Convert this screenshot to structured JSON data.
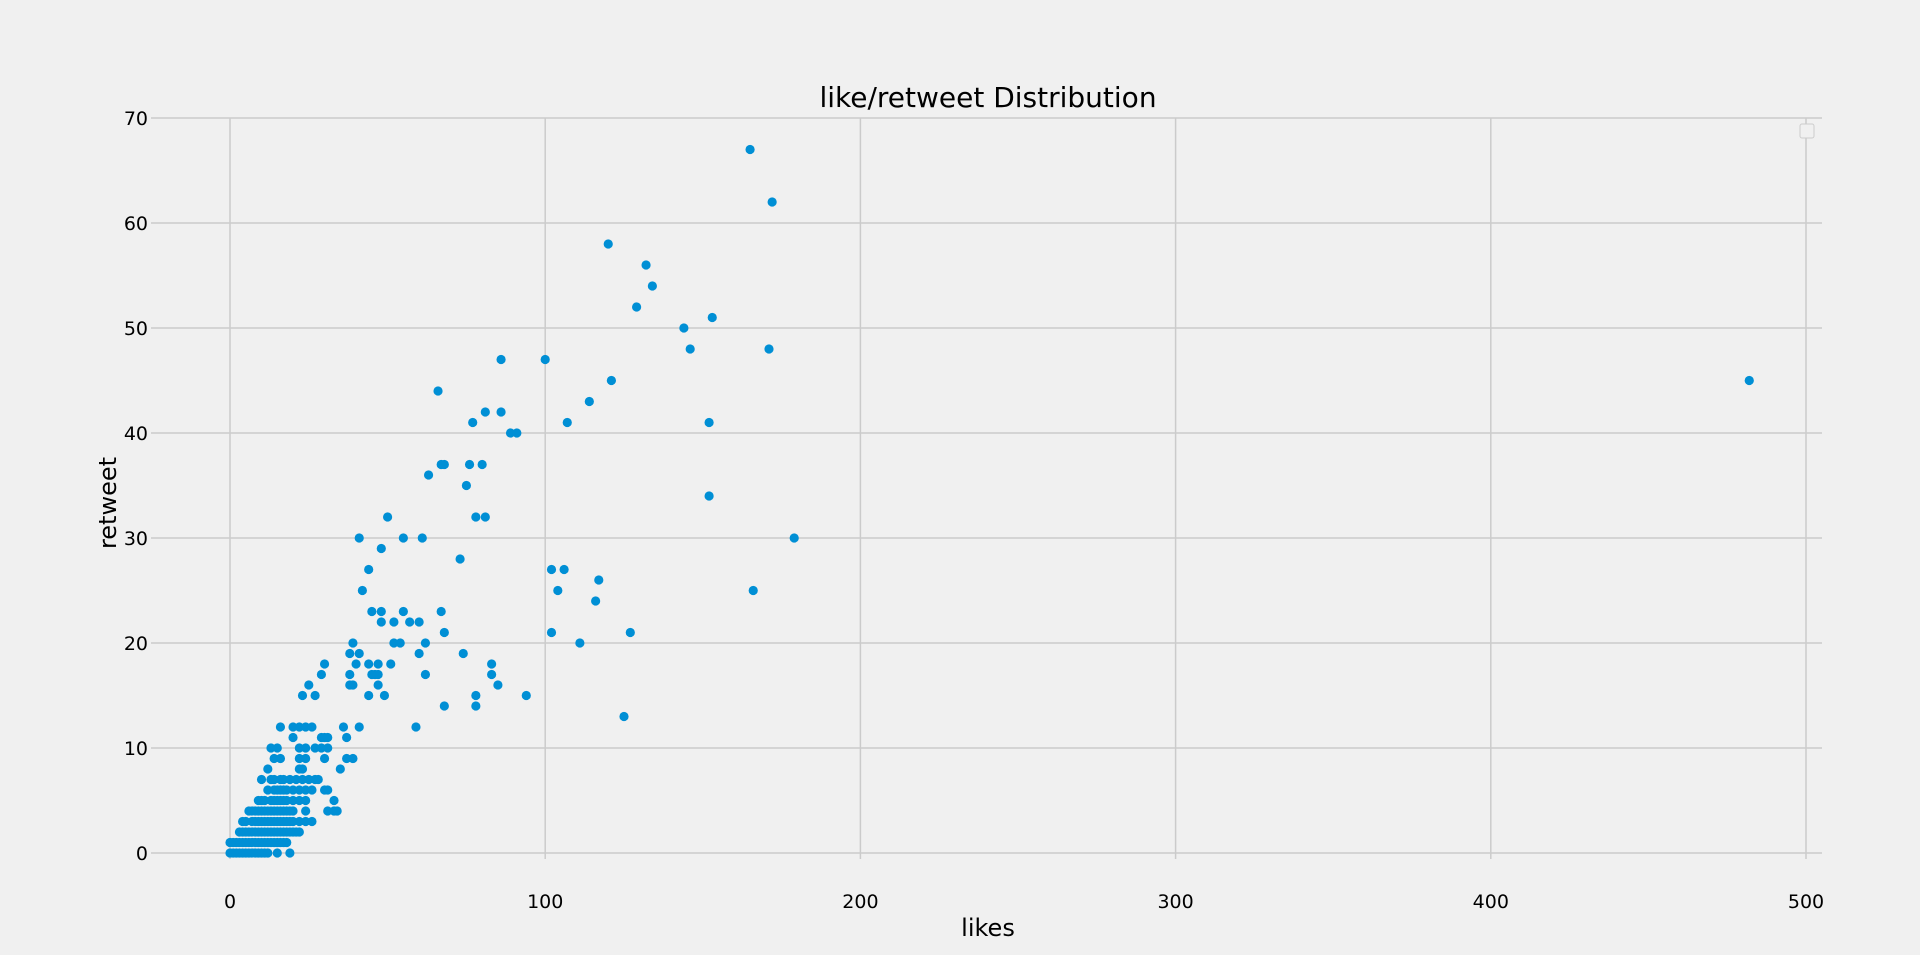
{
  "chart_data": {
    "type": "scatter",
    "title": "like/retweet Distribution",
    "xlabel": "likes",
    "ylabel": "retweet",
    "xlim": [
      -24,
      506
    ],
    "ylim": [
      -4,
      70
    ],
    "xticks": [
      0,
      100,
      200,
      300,
      400,
      500
    ],
    "yticks": [
      0,
      10,
      20,
      30,
      40,
      50,
      60,
      70
    ],
    "grid": true,
    "legend": "top-right (empty)",
    "marker_color": "#008fd5",
    "series": [
      {
        "points": [
          [
            0,
            0
          ],
          [
            1,
            0
          ],
          [
            2,
            0
          ],
          [
            3,
            0
          ],
          [
            4,
            0
          ],
          [
            5,
            0
          ],
          [
            6,
            0
          ],
          [
            7,
            0
          ],
          [
            8,
            0
          ],
          [
            9,
            0
          ],
          [
            10,
            0
          ],
          [
            11,
            0
          ],
          [
            12,
            0
          ],
          [
            15,
            0
          ],
          [
            19,
            0
          ],
          [
            0,
            1
          ],
          [
            1,
            1
          ],
          [
            2,
            1
          ],
          [
            3,
            1
          ],
          [
            4,
            1
          ],
          [
            5,
            1
          ],
          [
            6,
            1
          ],
          [
            7,
            1
          ],
          [
            8,
            1
          ],
          [
            9,
            1
          ],
          [
            10,
            1
          ],
          [
            11,
            1
          ],
          [
            12,
            1
          ],
          [
            13,
            1
          ],
          [
            14,
            1
          ],
          [
            15,
            1
          ],
          [
            16,
            1
          ],
          [
            17,
            1
          ],
          [
            18,
            1
          ],
          [
            3,
            2
          ],
          [
            4,
            2
          ],
          [
            5,
            2
          ],
          [
            6,
            2
          ],
          [
            7,
            2
          ],
          [
            8,
            2
          ],
          [
            9,
            2
          ],
          [
            10,
            2
          ],
          [
            11,
            2
          ],
          [
            12,
            2
          ],
          [
            13,
            2
          ],
          [
            14,
            2
          ],
          [
            15,
            2
          ],
          [
            16,
            2
          ],
          [
            17,
            2
          ],
          [
            18,
            2
          ],
          [
            19,
            2
          ],
          [
            20,
            2
          ],
          [
            21,
            2
          ],
          [
            22,
            2
          ],
          [
            4,
            3
          ],
          [
            5,
            3
          ],
          [
            7,
            3
          ],
          [
            8,
            3
          ],
          [
            9,
            3
          ],
          [
            10,
            3
          ],
          [
            11,
            3
          ],
          [
            12,
            3
          ],
          [
            13,
            3
          ],
          [
            14,
            3
          ],
          [
            15,
            3
          ],
          [
            16,
            3
          ],
          [
            17,
            3
          ],
          [
            18,
            3
          ],
          [
            19,
            3
          ],
          [
            20,
            3
          ],
          [
            22,
            3
          ],
          [
            24,
            3
          ],
          [
            26,
            3
          ],
          [
            6,
            4
          ],
          [
            7,
            4
          ],
          [
            8,
            4
          ],
          [
            9,
            4
          ],
          [
            10,
            4
          ],
          [
            11,
            4
          ],
          [
            12,
            4
          ],
          [
            13,
            4
          ],
          [
            14,
            4
          ],
          [
            15,
            4
          ],
          [
            16,
            4
          ],
          [
            17,
            4
          ],
          [
            18,
            4
          ],
          [
            19,
            4
          ],
          [
            20,
            4
          ],
          [
            24,
            4
          ],
          [
            31,
            4
          ],
          [
            33,
            4
          ],
          [
            34,
            4
          ],
          [
            9,
            5
          ],
          [
            10,
            5
          ],
          [
            11,
            5
          ],
          [
            13,
            5
          ],
          [
            14,
            5
          ],
          [
            15,
            5
          ],
          [
            16,
            5
          ],
          [
            17,
            5
          ],
          [
            18,
            5
          ],
          [
            20,
            5
          ],
          [
            22,
            5
          ],
          [
            24,
            5
          ],
          [
            33,
            5
          ],
          [
            12,
            6
          ],
          [
            14,
            6
          ],
          [
            15,
            6
          ],
          [
            16,
            6
          ],
          [
            17,
            6
          ],
          [
            18,
            6
          ],
          [
            20,
            6
          ],
          [
            22,
            6
          ],
          [
            24,
            6
          ],
          [
            26,
            6
          ],
          [
            30,
            6
          ],
          [
            31,
            6
          ],
          [
            10,
            7
          ],
          [
            13,
            7
          ],
          [
            14,
            7
          ],
          [
            16,
            7
          ],
          [
            17,
            7
          ],
          [
            19,
            7
          ],
          [
            21,
            7
          ],
          [
            23,
            7
          ],
          [
            25,
            7
          ],
          [
            27,
            7
          ],
          [
            28,
            7
          ],
          [
            12,
            8
          ],
          [
            22,
            8
          ],
          [
            23,
            8
          ],
          [
            35,
            8
          ],
          [
            14,
            9
          ],
          [
            16,
            9
          ],
          [
            22,
            9
          ],
          [
            24,
            9
          ],
          [
            30,
            9
          ],
          [
            37,
            9
          ],
          [
            39,
            9
          ],
          [
            13,
            10
          ],
          [
            15,
            10
          ],
          [
            22,
            10
          ],
          [
            24,
            10
          ],
          [
            27,
            10
          ],
          [
            29,
            10
          ],
          [
            31,
            10
          ],
          [
            20,
            11
          ],
          [
            29,
            11
          ],
          [
            30,
            11
          ],
          [
            31,
            11
          ],
          [
            37,
            11
          ],
          [
            16,
            12
          ],
          [
            20,
            12
          ],
          [
            22,
            12
          ],
          [
            24,
            12
          ],
          [
            26,
            12
          ],
          [
            36,
            12
          ],
          [
            41,
            12
          ],
          [
            59,
            12
          ],
          [
            23,
            15
          ],
          [
            27,
            15
          ],
          [
            44,
            15
          ],
          [
            49,
            15
          ],
          [
            78,
            15
          ],
          [
            94,
            15
          ],
          [
            25,
            16
          ],
          [
            38,
            16
          ],
          [
            39,
            16
          ],
          [
            47,
            16
          ],
          [
            85,
            16
          ],
          [
            29,
            17
          ],
          [
            38,
            17
          ],
          [
            45,
            17
          ],
          [
            46,
            17
          ],
          [
            47,
            17
          ],
          [
            62,
            17
          ],
          [
            83,
            17
          ],
          [
            30,
            18
          ],
          [
            40,
            18
          ],
          [
            44,
            18
          ],
          [
            47,
            18
          ],
          [
            51,
            18
          ],
          [
            83,
            18
          ],
          [
            38,
            19
          ],
          [
            41,
            19
          ],
          [
            60,
            19
          ],
          [
            74,
            19
          ],
          [
            39,
            20
          ],
          [
            52,
            20
          ],
          [
            54,
            20
          ],
          [
            62,
            20
          ],
          [
            111,
            20
          ],
          [
            68,
            21
          ],
          [
            102,
            21
          ],
          [
            127,
            21
          ],
          [
            48,
            22
          ],
          [
            52,
            22
          ],
          [
            57,
            22
          ],
          [
            60,
            22
          ],
          [
            45,
            23
          ],
          [
            48,
            23
          ],
          [
            55,
            23
          ],
          [
            67,
            23
          ],
          [
            42,
            25
          ],
          [
            104,
            25
          ],
          [
            166,
            25
          ],
          [
            102,
            27
          ],
          [
            106,
            27
          ],
          [
            44,
            27
          ],
          [
            117,
            26
          ],
          [
            116,
            24
          ],
          [
            125,
            13
          ],
          [
            73,
            28
          ],
          [
            48,
            29
          ],
          [
            41,
            30
          ],
          [
            55,
            30
          ],
          [
            61,
            30
          ],
          [
            179,
            30
          ],
          [
            50,
            32
          ],
          [
            78,
            32
          ],
          [
            81,
            32
          ],
          [
            152,
            34
          ],
          [
            75,
            35
          ],
          [
            63,
            36
          ],
          [
            67,
            37
          ],
          [
            68,
            37
          ],
          [
            76,
            37
          ],
          [
            80,
            37
          ],
          [
            77,
            41
          ],
          [
            81,
            42
          ],
          [
            86,
            42
          ],
          [
            89,
            40
          ],
          [
            91,
            40
          ],
          [
            107,
            41
          ],
          [
            152,
            41
          ],
          [
            66,
            44
          ],
          [
            114,
            43
          ],
          [
            121,
            45
          ],
          [
            482,
            45
          ],
          [
            86,
            47
          ],
          [
            100,
            47
          ],
          [
            171,
            48
          ],
          [
            146,
            48
          ],
          [
            144,
            50
          ],
          [
            153,
            51
          ],
          [
            129,
            52
          ],
          [
            134,
            54
          ],
          [
            132,
            56
          ],
          [
            120,
            58
          ],
          [
            172,
            62
          ],
          [
            165,
            67
          ],
          [
            78,
            14
          ],
          [
            68,
            14
          ]
        ]
      }
    ]
  }
}
